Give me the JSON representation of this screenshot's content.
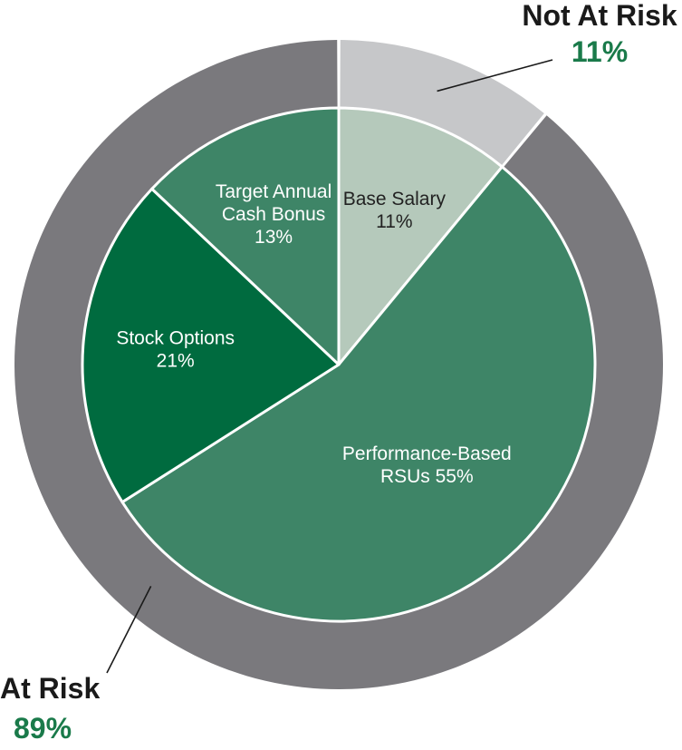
{
  "chart_data": {
    "type": "pie",
    "inner": {
      "slices": [
        {
          "label_lines": [
            "Base Salary",
            "11%"
          ],
          "value": 11,
          "color": "#b5c9bb",
          "text_color": "#222222"
        },
        {
          "label_lines": [
            "Performance-Based",
            "RSUs 55%"
          ],
          "value": 55,
          "color": "#3e8567",
          "text_color": "#ffffff"
        },
        {
          "label_lines": [
            "Stock Options",
            "21%"
          ],
          "value": 21,
          "color": "#006b3f",
          "text_color": "#ffffff"
        },
        {
          "label_lines": [
            "Target Annual",
            "Cash Bonus",
            "13%"
          ],
          "value": 13,
          "color": "#3e8567",
          "text_color": "#ffffff"
        }
      ]
    },
    "outer": {
      "slices": [
        {
          "label": "Not At Risk",
          "percent_label": "11%",
          "value": 11,
          "color": "#c6c7c9"
        },
        {
          "label": "At Risk",
          "percent_label": "89%",
          "value": 89,
          "color": "#7a797d"
        }
      ]
    },
    "label_color": "#1a1a1a",
    "percent_color": "#1a7a4a"
  }
}
